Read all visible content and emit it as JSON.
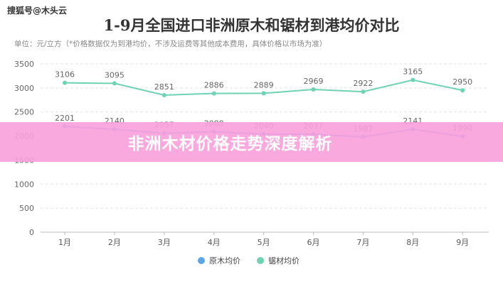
{
  "watermark": "搜狐号@木头云",
  "banner": "非洲木材价格走势深度解析",
  "chart_data": {
    "type": "line",
    "title": "1-9月全国进口非洲原木和锯材到港均价对比",
    "subtitle": "单位：元/立方（*价格数据仅为到港均价，不涉及运费等其他成本费用，具体价格以市场为准）",
    "categories": [
      "1月",
      "2月",
      "3月",
      "4月",
      "5月",
      "6月",
      "7月",
      "8月",
      "9月"
    ],
    "ylim": [
      0,
      3500
    ],
    "yticks": [
      0,
      500,
      1000,
      1500,
      2000,
      2500,
      3000,
      3500
    ],
    "grid": true,
    "legend_position": "bottom",
    "series": [
      {
        "name": "原木均价",
        "color": "#5aa6e8",
        "values": [
          2201,
          2140,
          2057,
          2088,
          2040,
          2037,
          1982,
          2141,
          1990
        ]
      },
      {
        "name": "锯材均价",
        "color": "#6dd3b0",
        "values": [
          3106,
          3095,
          2851,
          2886,
          2889,
          2969,
          2922,
          3165,
          2950
        ]
      }
    ]
  }
}
